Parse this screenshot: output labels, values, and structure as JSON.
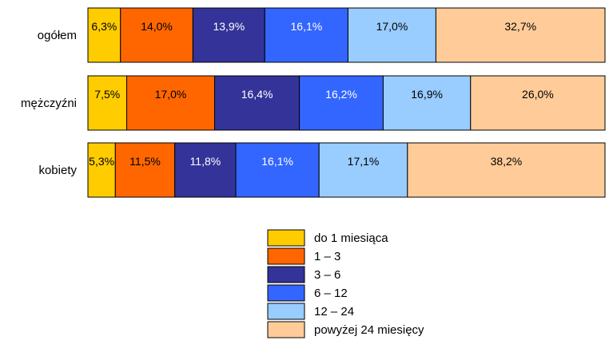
{
  "chart_data": {
    "type": "bar",
    "orientation": "horizontal",
    "stacked": true,
    "normalized_to_100": true,
    "categories": [
      "ogółem",
      "mężczyźni",
      "kobiety"
    ],
    "series": [
      {
        "name": "do 1 miesiąca",
        "color": "#FFCC00",
        "values": [
          6.3,
          7.5,
          5.3
        ],
        "labels": [
          "6,3%",
          "7,5%",
          "5,3%"
        ]
      },
      {
        "name": "1 – 3",
        "color": "#FF6600",
        "values": [
          14.0,
          17.0,
          11.5
        ],
        "labels": [
          "14,0%",
          "17,0%",
          "11,5%"
        ]
      },
      {
        "name": "3 – 6",
        "color": "#333399",
        "values": [
          13.9,
          16.4,
          11.8
        ],
        "labels": [
          "13,9%",
          "16,4%",
          "11,8%"
        ]
      },
      {
        "name": "6 – 12",
        "color": "#3366FF",
        "values": [
          16.1,
          16.2,
          16.1
        ],
        "labels": [
          "16,1%",
          "16,2%",
          "16,1%"
        ]
      },
      {
        "name": "12 – 24",
        "color": "#99CCFF",
        "values": [
          17.0,
          16.9,
          17.1
        ],
        "labels": [
          "17,0%",
          "16,9%",
          "17,1%"
        ]
      },
      {
        "name": "powyżej 24 miesięcy",
        "color": "#FFCC99",
        "values": [
          32.7,
          26.0,
          38.2
        ],
        "labels": [
          "32,7%",
          "26,0%",
          "38,2%"
        ]
      }
    ],
    "data_label_colors": [
      "#000000",
      "#000000",
      "#FFFFFF",
      "#FFFFFF",
      "#000000",
      "#000000"
    ],
    "legend_position": "bottom-center",
    "grid": false
  }
}
